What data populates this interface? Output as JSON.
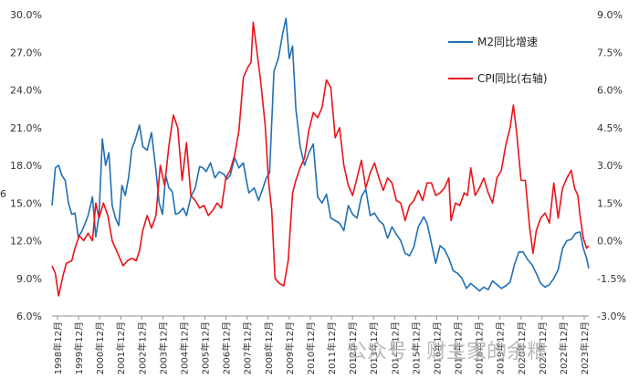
{
  "chart_data": {
    "type": "line",
    "title": "",
    "xlabel": "",
    "ylabel": "",
    "y_left": {
      "lim": [
        6.0,
        30.0
      ],
      "ticks": [
        "30.0%",
        "27.0%",
        "24.0%",
        "21.0%",
        "18.0%",
        "15.0%",
        "12.0%",
        "9.0%",
        "6.0%"
      ]
    },
    "y_right": {
      "lim": [
        -3.0,
        9.0
      ],
      "ticks": [
        "9.0%",
        "7.5%",
        "6.0%",
        "4.5%",
        "3.0%",
        "1.5%",
        "0.0%",
        "-1.5%",
        "-3.0%"
      ]
    },
    "x_ticks": [
      "1998年12月",
      "1999年12月",
      "2000年12月",
      "2001年12月",
      "2002年12月",
      "2003年12月",
      "2004年12月",
      "2005年12月",
      "2006年12月",
      "2007年12月",
      "2008年12月",
      "2009年12月",
      "2010年12月",
      "2011年12月",
      "2012年12月",
      "2013年12月",
      "2014年12月",
      "2015年12月",
      "2016年12月",
      "2017年12月",
      "2018年12月",
      "2019年12月",
      "2020年12月",
      "2021年12月",
      "2022年12月",
      "2023年12月"
    ],
    "x_range": [
      1998.95,
      2023.5
    ],
    "grid": false,
    "legend": "top-right",
    "series": [
      {
        "name": "M2同比增速",
        "axis": "left",
        "color": "#1f6fb5",
        "points": [
          [
            1998.95,
            14.8
          ],
          [
            1999.1,
            17.8
          ],
          [
            1999.25,
            18.0
          ],
          [
            1999.4,
            17.2
          ],
          [
            1999.55,
            16.8
          ],
          [
            1999.7,
            15.0
          ],
          [
            1999.85,
            14.1
          ],
          [
            2000.0,
            14.2
          ],
          [
            2000.15,
            12.3
          ],
          [
            2000.3,
            12.7
          ],
          [
            2000.45,
            13.3
          ],
          [
            2000.6,
            14.0
          ],
          [
            2000.8,
            15.5
          ],
          [
            2000.95,
            12.3
          ],
          [
            2001.1,
            14.0
          ],
          [
            2001.25,
            20.1
          ],
          [
            2001.4,
            18.0
          ],
          [
            2001.55,
            19.0
          ],
          [
            2001.7,
            14.8
          ],
          [
            2001.85,
            13.8
          ],
          [
            2002.0,
            13.2
          ],
          [
            2002.15,
            16.4
          ],
          [
            2002.3,
            15.6
          ],
          [
            2002.45,
            17.0
          ],
          [
            2002.6,
            19.3
          ],
          [
            2002.75,
            20.0
          ],
          [
            2002.95,
            21.2
          ],
          [
            2003.1,
            19.5
          ],
          [
            2003.3,
            19.2
          ],
          [
            2003.5,
            20.6
          ],
          [
            2003.7,
            17.6
          ],
          [
            2003.85,
            15.0
          ],
          [
            2004.0,
            14.1
          ],
          [
            2004.15,
            17.2
          ],
          [
            2004.3,
            16.2
          ],
          [
            2004.45,
            15.9
          ],
          [
            2004.6,
            14.1
          ],
          [
            2004.75,
            14.2
          ],
          [
            2004.95,
            14.6
          ],
          [
            2005.1,
            14.0
          ],
          [
            2005.3,
            15.5
          ],
          [
            2005.5,
            16.2
          ],
          [
            2005.7,
            17.9
          ],
          [
            2005.85,
            17.8
          ],
          [
            2006.0,
            17.5
          ],
          [
            2006.2,
            18.2
          ],
          [
            2006.4,
            17.0
          ],
          [
            2006.6,
            17.5
          ],
          [
            2006.8,
            17.3
          ],
          [
            2006.95,
            16.9
          ],
          [
            2007.1,
            17.2
          ],
          [
            2007.3,
            18.6
          ],
          [
            2007.5,
            17.8
          ],
          [
            2007.7,
            18.2
          ],
          [
            2007.85,
            16.7
          ],
          [
            2007.95,
            15.8
          ],
          [
            2008.2,
            16.2
          ],
          [
            2008.4,
            15.2
          ],
          [
            2008.6,
            16.2
          ],
          [
            2008.75,
            17.0
          ],
          [
            2008.9,
            17.4
          ],
          [
            2009.1,
            25.5
          ],
          [
            2009.3,
            26.5
          ],
          [
            2009.5,
            28.5
          ],
          [
            2009.65,
            29.7
          ],
          [
            2009.8,
            26.5
          ],
          [
            2009.95,
            27.5
          ],
          [
            2010.1,
            22.5
          ],
          [
            2010.3,
            19.5
          ],
          [
            2010.5,
            18.0
          ],
          [
            2010.7,
            19.0
          ],
          [
            2010.9,
            19.7
          ],
          [
            2011.1,
            15.5
          ],
          [
            2011.3,
            15.0
          ],
          [
            2011.5,
            15.7
          ],
          [
            2011.7,
            13.8
          ],
          [
            2011.9,
            13.6
          ],
          [
            2012.1,
            13.4
          ],
          [
            2012.3,
            12.8
          ],
          [
            2012.5,
            14.8
          ],
          [
            2012.7,
            14.1
          ],
          [
            2012.9,
            13.8
          ],
          [
            2013.1,
            15.5
          ],
          [
            2013.3,
            16.1
          ],
          [
            2013.5,
            14.0
          ],
          [
            2013.7,
            14.2
          ],
          [
            2013.9,
            13.6
          ],
          [
            2014.1,
            13.3
          ],
          [
            2014.3,
            12.2
          ],
          [
            2014.5,
            13.1
          ],
          [
            2014.7,
            12.5
          ],
          [
            2014.9,
            12.0
          ],
          [
            2015.1,
            11.0
          ],
          [
            2015.3,
            10.8
          ],
          [
            2015.5,
            11.5
          ],
          [
            2015.7,
            13.1
          ],
          [
            2015.95,
            13.9
          ],
          [
            2016.1,
            13.4
          ],
          [
            2016.3,
            11.8
          ],
          [
            2016.5,
            10.2
          ],
          [
            2016.7,
            11.6
          ],
          [
            2016.9,
            11.3
          ],
          [
            2017.1,
            10.6
          ],
          [
            2017.3,
            9.6
          ],
          [
            2017.5,
            9.4
          ],
          [
            2017.7,
            9.0
          ],
          [
            2017.9,
            8.2
          ],
          [
            2018.1,
            8.6
          ],
          [
            2018.3,
            8.3
          ],
          [
            2018.5,
            8.0
          ],
          [
            2018.7,
            8.3
          ],
          [
            2018.9,
            8.1
          ],
          [
            2019.1,
            8.8
          ],
          [
            2019.3,
            8.5
          ],
          [
            2019.5,
            8.2
          ],
          [
            2019.7,
            8.4
          ],
          [
            2019.9,
            8.7
          ],
          [
            2020.1,
            10.1
          ],
          [
            2020.3,
            11.1
          ],
          [
            2020.5,
            11.1
          ],
          [
            2020.7,
            10.5
          ],
          [
            2020.9,
            10.1
          ],
          [
            2021.1,
            9.4
          ],
          [
            2021.3,
            8.6
          ],
          [
            2021.5,
            8.3
          ],
          [
            2021.7,
            8.5
          ],
          [
            2021.9,
            9.0
          ],
          [
            2022.1,
            9.7
          ],
          [
            2022.3,
            11.4
          ],
          [
            2022.5,
            12.0
          ],
          [
            2022.7,
            12.1
          ],
          [
            2022.9,
            12.6
          ],
          [
            2023.1,
            12.7
          ],
          [
            2023.25,
            11.4
          ],
          [
            2023.4,
            10.6
          ],
          [
            2023.5,
            9.8
          ]
        ]
      },
      {
        "name": "CPI同比(右轴)",
        "axis": "right",
        "color": "#e8141b",
        "points": [
          [
            1998.95,
            -1.0
          ],
          [
            1999.1,
            -1.3
          ],
          [
            1999.25,
            -2.2
          ],
          [
            1999.45,
            -1.4
          ],
          [
            1999.6,
            -0.9
          ],
          [
            1999.85,
            -0.8
          ],
          [
            2000.0,
            -0.3
          ],
          [
            2000.2,
            0.2
          ],
          [
            2000.4,
            0.0
          ],
          [
            2000.6,
            0.3
          ],
          [
            2000.8,
            0.0
          ],
          [
            2000.95,
            1.5
          ],
          [
            2001.1,
            0.9
          ],
          [
            2001.3,
            1.5
          ],
          [
            2001.5,
            1.0
          ],
          [
            2001.7,
            0.0
          ],
          [
            2001.85,
            -0.3
          ],
          [
            2002.0,
            -0.6
          ],
          [
            2002.2,
            -1.0
          ],
          [
            2002.4,
            -0.8
          ],
          [
            2002.6,
            -0.7
          ],
          [
            2002.8,
            -0.8
          ],
          [
            2002.95,
            -0.4
          ],
          [
            2003.1,
            0.4
          ],
          [
            2003.3,
            1.0
          ],
          [
            2003.5,
            0.5
          ],
          [
            2003.7,
            1.0
          ],
          [
            2003.9,
            3.0
          ],
          [
            2004.1,
            2.2
          ],
          [
            2004.3,
            3.8
          ],
          [
            2004.5,
            5.0
          ],
          [
            2004.7,
            4.5
          ],
          [
            2004.9,
            2.4
          ],
          [
            2005.1,
            3.9
          ],
          [
            2005.3,
            1.8
          ],
          [
            2005.5,
            1.6
          ],
          [
            2005.7,
            1.3
          ],
          [
            2005.9,
            1.4
          ],
          [
            2006.1,
            1.0
          ],
          [
            2006.3,
            1.2
          ],
          [
            2006.5,
            1.5
          ],
          [
            2006.7,
            1.3
          ],
          [
            2006.9,
            2.5
          ],
          [
            2007.1,
            2.8
          ],
          [
            2007.3,
            3.4
          ],
          [
            2007.5,
            4.4
          ],
          [
            2007.7,
            6.5
          ],
          [
            2007.9,
            6.9
          ],
          [
            2008.05,
            7.1
          ],
          [
            2008.15,
            8.7
          ],
          [
            2008.3,
            7.7
          ],
          [
            2008.5,
            6.3
          ],
          [
            2008.7,
            4.6
          ],
          [
            2008.85,
            2.4
          ],
          [
            2009.0,
            1.2
          ],
          [
            2009.15,
            -1.5
          ],
          [
            2009.35,
            -1.7
          ],
          [
            2009.55,
            -1.8
          ],
          [
            2009.75,
            -0.8
          ],
          [
            2009.95,
            1.9
          ],
          [
            2010.1,
            2.4
          ],
          [
            2010.3,
            2.9
          ],
          [
            2010.5,
            3.3
          ],
          [
            2010.7,
            4.4
          ],
          [
            2010.9,
            5.1
          ],
          [
            2011.1,
            4.9
          ],
          [
            2011.3,
            5.3
          ],
          [
            2011.5,
            6.4
          ],
          [
            2011.7,
            6.1
          ],
          [
            2011.9,
            4.1
          ],
          [
            2012.1,
            4.5
          ],
          [
            2012.3,
            3.0
          ],
          [
            2012.5,
            2.2
          ],
          [
            2012.7,
            1.8
          ],
          [
            2012.9,
            2.5
          ],
          [
            2013.1,
            3.2
          ],
          [
            2013.3,
            2.1
          ],
          [
            2013.5,
            2.7
          ],
          [
            2013.7,
            3.1
          ],
          [
            2013.9,
            2.5
          ],
          [
            2014.1,
            2.0
          ],
          [
            2014.3,
            2.5
          ],
          [
            2014.5,
            2.3
          ],
          [
            2014.7,
            1.6
          ],
          [
            2014.9,
            1.5
          ],
          [
            2015.1,
            0.8
          ],
          [
            2015.3,
            1.4
          ],
          [
            2015.5,
            1.6
          ],
          [
            2015.7,
            2.0
          ],
          [
            2015.9,
            1.6
          ],
          [
            2016.1,
            2.3
          ],
          [
            2016.3,
            2.3
          ],
          [
            2016.5,
            1.8
          ],
          [
            2016.7,
            1.9
          ],
          [
            2016.9,
            2.1
          ],
          [
            2017.1,
            2.5
          ],
          [
            2017.2,
            0.8
          ],
          [
            2017.4,
            1.5
          ],
          [
            2017.6,
            1.4
          ],
          [
            2017.8,
            1.9
          ],
          [
            2017.95,
            1.8
          ],
          [
            2018.1,
            2.9
          ],
          [
            2018.3,
            1.8
          ],
          [
            2018.5,
            2.1
          ],
          [
            2018.7,
            2.5
          ],
          [
            2018.9,
            1.9
          ],
          [
            2019.1,
            1.5
          ],
          [
            2019.3,
            2.5
          ],
          [
            2019.5,
            2.8
          ],
          [
            2019.7,
            3.8
          ],
          [
            2019.9,
            4.5
          ],
          [
            2020.05,
            5.4
          ],
          [
            2020.2,
            4.3
          ],
          [
            2020.4,
            2.4
          ],
          [
            2020.6,
            2.4
          ],
          [
            2020.8,
            0.5
          ],
          [
            2020.95,
            -0.5
          ],
          [
            2021.1,
            0.4
          ],
          [
            2021.3,
            0.9
          ],
          [
            2021.5,
            1.1
          ],
          [
            2021.7,
            0.7
          ],
          [
            2021.9,
            2.3
          ],
          [
            2022.1,
            0.9
          ],
          [
            2022.3,
            2.1
          ],
          [
            2022.5,
            2.5
          ],
          [
            2022.7,
            2.8
          ],
          [
            2022.85,
            2.1
          ],
          [
            2023.0,
            1.8
          ],
          [
            2023.1,
            1.0
          ],
          [
            2023.25,
            0.1
          ],
          [
            2023.4,
            -0.3
          ],
          [
            2023.5,
            -0.2
          ]
        ]
      }
    ]
  },
  "watermark": "公众号 · 财主家的余粮",
  "side_glyph": "6"
}
